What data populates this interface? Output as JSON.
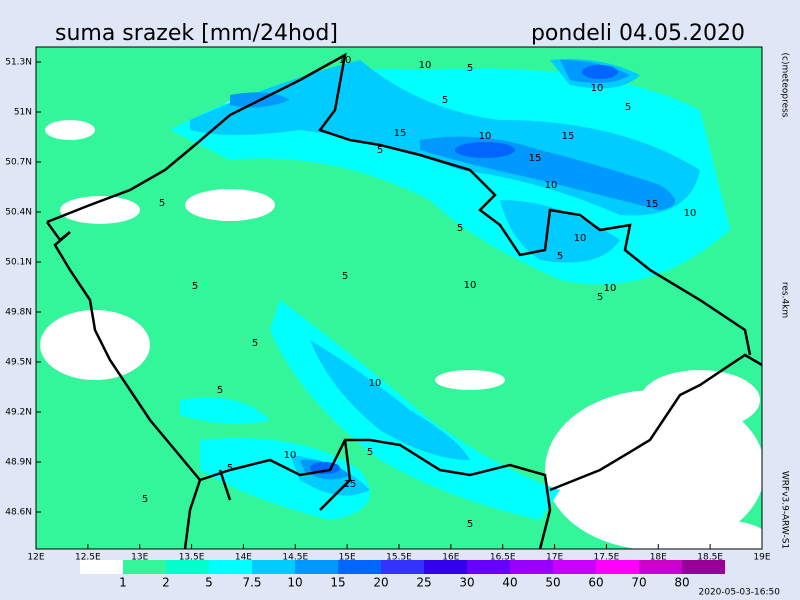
{
  "header": {
    "title": "suma srazek [mm/24hod]",
    "date": "pondeli 04.05.2020"
  },
  "side": {
    "copyright": "(c)meteopress",
    "resolution": "res.4km",
    "model": "WRFv3.9-ARW-S1"
  },
  "map": {
    "lat_labels": [
      "51.3N",
      "51N",
      "50.7N",
      "50.4N",
      "50.1N",
      "49.8N",
      "49.5N",
      "49.2N",
      "48.9N",
      "48.6N"
    ],
    "lon_labels": [
      "12E",
      "12.5E",
      "13E",
      "13.5E",
      "14E",
      "14.5E",
      "15E",
      "15.5E",
      "16E",
      "16.5E",
      "17E",
      "17.5E",
      "18E",
      "18.5E",
      "19E"
    ],
    "contour_labels": [
      "10",
      "10",
      "5",
      "5",
      "10",
      "5",
      "15",
      "10",
      "15",
      "5",
      "15",
      "10",
      "15",
      "10",
      "5",
      "5",
      "10",
      "5",
      "5",
      "10",
      "5",
      "10",
      "5",
      "5",
      "5",
      "5",
      "10",
      "5",
      "15",
      "5",
      "5",
      "10"
    ]
  },
  "legend": {
    "levels": [
      "1",
      "2",
      "5",
      "7.5",
      "10",
      "15",
      "20",
      "25",
      "30",
      "40",
      "50",
      "60",
      "70",
      "80"
    ],
    "colors": [
      "#ffffff",
      "#33f599",
      "#00ffcc",
      "#00ffff",
      "#00ccff",
      "#0099ff",
      "#0066ff",
      "#3333ff",
      "#3300ee",
      "#6600ff",
      "#9900ff",
      "#cc00ff",
      "#ff00ff",
      "#cc00cc",
      "#990099"
    ]
  },
  "footer": {
    "timestamp": "2020-05-03-16:50"
  }
}
